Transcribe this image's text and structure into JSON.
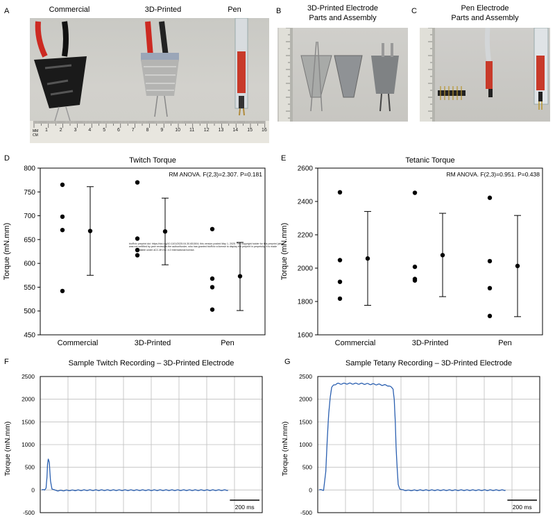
{
  "panels": {
    "A": {
      "letter": "A",
      "labels": [
        "Commercial",
        "3D-Printed",
        "Pen"
      ],
      "ruler_unit_top": "MM",
      "ruler_unit_bottom": "CM",
      "ruler_numbers": [
        "1",
        "2",
        "3",
        "4",
        "5",
        "6",
        "7",
        "8",
        "9",
        "10",
        "11",
        "12",
        "13",
        "14",
        "15",
        "16"
      ]
    },
    "B": {
      "letter": "B",
      "title_line1": "3D-Printed Electrode",
      "title_line2": "Parts and Assembly"
    },
    "C": {
      "letter": "C",
      "title_line1": "Pen Electrode",
      "title_line2": "Parts and Assembly"
    },
    "D": {
      "letter": "D"
    },
    "E": {
      "letter": "E"
    },
    "F": {
      "letter": "F"
    },
    "G": {
      "letter": "G"
    }
  },
  "preprint_notice": {
    "line1": "bioRxiv preprint doi: https://doi.org/10.1101/2025.04.30.651504; this version posted May 1, 2025. The copyright holder for this preprint (which",
    "line2": "was not certified by peer review) is the author/funder, who has granted bioRxiv a license to display the preprint in perpetuity. It is made",
    "line3": "available under aCC-BY-NC 4.0 International license."
  },
  "chart_data": [
    {
      "id": "D",
      "type": "scatter",
      "title": "Twitch Torque",
      "ylabel": "Torque (mN.mm)",
      "xlabel": "",
      "ylim": [
        450,
        800
      ],
      "yticks": [
        450,
        500,
        550,
        600,
        650,
        700,
        750,
        800
      ],
      "categories": [
        "Commercial",
        "3D-Printed",
        "Pen"
      ],
      "points": [
        [
          765,
          698,
          670,
          542
        ],
        [
          770,
          652,
          628,
          617
        ],
        [
          672,
          568,
          550,
          503
        ]
      ],
      "mean": [
        668,
        667,
        573
      ],
      "error_low": [
        575,
        597,
        501
      ],
      "error_high": [
        761,
        737,
        644
      ],
      "annotation": "RM ANOVA.  F(2,3)=2.307.  P=0.181",
      "grid": false
    },
    {
      "id": "E",
      "type": "scatter",
      "title": "Tetanic Torque",
      "ylabel": "Torque (mN.mm)",
      "xlabel": "",
      "ylim": [
        1600,
        2600
      ],
      "yticks": [
        1600,
        1800,
        2000,
        2200,
        2400,
        2600
      ],
      "categories": [
        "Commercial",
        "3D-Printed",
        "Pen"
      ],
      "points": [
        [
          2455,
          2048,
          1918,
          1817
        ],
        [
          2452,
          2008,
          1935,
          1926
        ],
        [
          2422,
          2042,
          1880,
          1713
        ]
      ],
      "mean": [
        2058,
        2078,
        2013
      ],
      "error_low": [
        1777,
        1829,
        1709
      ],
      "error_high": [
        2340,
        2329,
        2316
      ],
      "annotation": "RM ANOVA.  F(2,3)=0.951.  P=0.438",
      "grid": false
    },
    {
      "id": "F",
      "type": "line",
      "title": "Sample Twitch Recording – 3D-Printed Electrode",
      "ylabel": "Torque (mN.mm)",
      "xlabel": "",
      "ylim": [
        -500,
        2500
      ],
      "yticks": [
        -500,
        0,
        500,
        1000,
        1500,
        2000,
        2500
      ],
      "grid": true,
      "x_ms": [
        0,
        20,
        30,
        36,
        40,
        45,
        52,
        60,
        70,
        90,
        120,
        160,
        300,
        500,
        700,
        900,
        1100,
        1260
      ],
      "y": [
        0,
        0,
        50,
        280,
        560,
        680,
        600,
        200,
        30,
        -10,
        -15,
        -10,
        -5,
        -5,
        -5,
        -5,
        -5,
        -5
      ],
      "scalebar": "200 ms",
      "line_color": "#2a5fb0"
    },
    {
      "id": "G",
      "type": "line",
      "title": "Sample Tetany Recording – 3D-Printed Electrode",
      "ylabel": "Torque (mN.mm)",
      "xlabel": "",
      "ylim": [
        -500,
        2500
      ],
      "yticks": [
        -500,
        0,
        500,
        1000,
        1500,
        2000,
        2500
      ],
      "grid": true,
      "x_ms": [
        0,
        30,
        45,
        55,
        65,
        75,
        85,
        100,
        120,
        200,
        300,
        400,
        470,
        500,
        508,
        515,
        520,
        528,
        535,
        545,
        560,
        600,
        700,
        800,
        900,
        1100,
        1260
      ],
      "y": [
        0,
        0,
        400,
        1100,
        1700,
        2050,
        2250,
        2320,
        2340,
        2345,
        2340,
        2325,
        2300,
        2230,
        2000,
        1500,
        950,
        450,
        120,
        30,
        0,
        -10,
        -5,
        -5,
        -5,
        -5,
        -5
      ],
      "scalebar": "200 ms",
      "line_color": "#2a5fb0"
    }
  ]
}
